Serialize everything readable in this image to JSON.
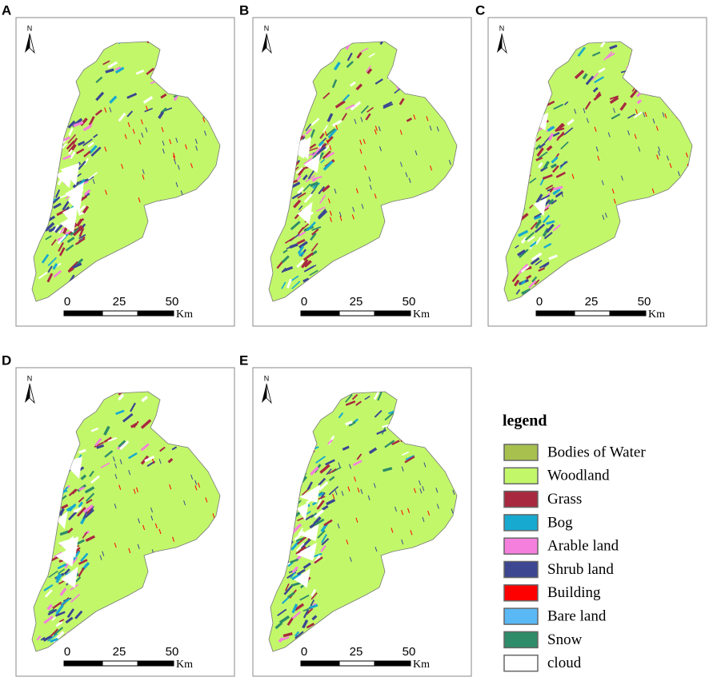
{
  "panels": [
    {
      "label": "A",
      "north": "N",
      "scale": [
        "0",
        "25",
        "50"
      ],
      "unit": "Km"
    },
    {
      "label": "B",
      "north": "N",
      "scale": [
        "0",
        "25",
        "50"
      ],
      "unit": "Km"
    },
    {
      "label": "C",
      "north": "N",
      "scale": [
        "0",
        "25",
        "50"
      ],
      "unit": "Km"
    },
    {
      "label": "D",
      "north": "N",
      "scale": [
        "0",
        "25",
        "50"
      ],
      "unit": "Km"
    },
    {
      "label": "E",
      "north": "N",
      "scale": [
        "0",
        "25",
        "50"
      ],
      "unit": "Km"
    }
  ],
  "legend": {
    "title": "legend",
    "items": [
      {
        "label": "Bodies of Water",
        "color": "#a8c14e"
      },
      {
        "label": "Woodland",
        "color": "#c2f76a"
      },
      {
        "label": "Grass",
        "color": "#a8293f"
      },
      {
        "label": "Bog",
        "color": "#17a9cf"
      },
      {
        "label": "Arable land",
        "color": "#f57fdd"
      },
      {
        "label": "Shrub land",
        "color": "#3c4691"
      },
      {
        "label": "Building",
        "color": "#ff0000"
      },
      {
        "label": "Bare land",
        "color": "#5ab8f5"
      },
      {
        "label": "Snow",
        "color": "#2e8c68"
      },
      {
        "label": "cloud",
        "color": "#ffffff"
      }
    ]
  }
}
